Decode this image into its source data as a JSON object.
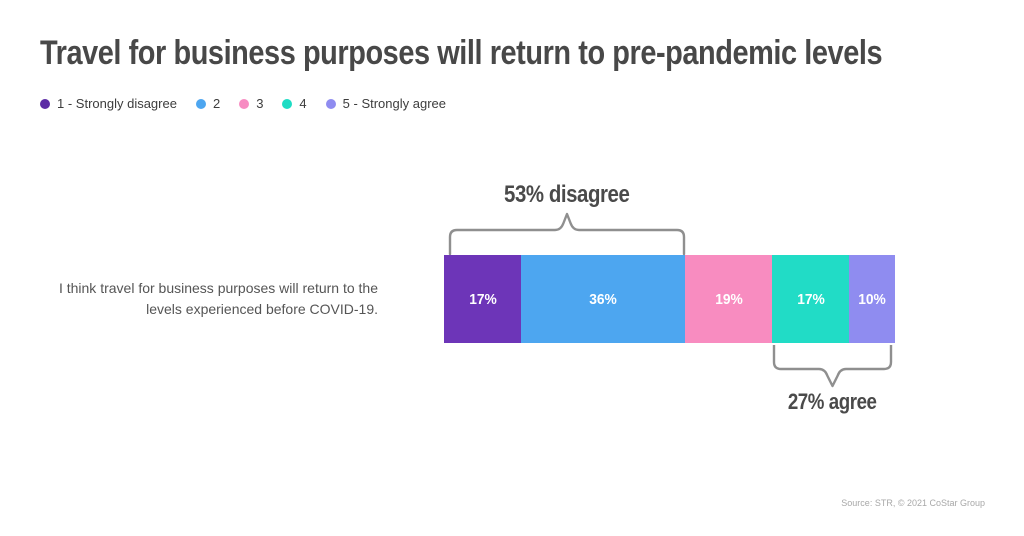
{
  "title": "Travel for business purposes will return to pre-pandemic levels",
  "legend": [
    {
      "label": "1 - Strongly disagree",
      "color": "#5c2ca5"
    },
    {
      "label": "2",
      "color": "#4da6f0"
    },
    {
      "label": "3",
      "color": "#f78cc2"
    },
    {
      "label": "4",
      "color": "#1edcc4"
    },
    {
      "label": "5 - Strongly agree",
      "color": "#8f8cf0"
    }
  ],
  "statement": {
    "lines": [
      "I think travel for business purposes will return to the",
      "levels experienced before COVID-19."
    ]
  },
  "chart_data": {
    "type": "bar",
    "orientation": "horizontal",
    "stacked": true,
    "title": "Travel for business purposes will return to pre-pandemic levels",
    "category": "I think travel for business purposes will return to the levels experienced before COVID-19.",
    "unit": "%",
    "xlim": [
      0,
      100
    ],
    "legend_position": "top-left",
    "series": [
      {
        "name": "1 - Strongly disagree",
        "value": 17,
        "label": "17%",
        "color": "#6d35b8"
      },
      {
        "name": "2",
        "value": 36,
        "label": "36%",
        "color": "#4da6f0"
      },
      {
        "name": "3",
        "value": 19,
        "label": "19%",
        "color": "#f88cc0"
      },
      {
        "name": "4",
        "value": 17,
        "label": "17%",
        "color": "#21dcc6"
      },
      {
        "name": "5 - Strongly agree",
        "value": 10,
        "label": "10%",
        "color": "#8f8cf0"
      }
    ],
    "annotations": [
      {
        "text": "53% disagree",
        "spans": [
          "1 - Strongly disagree",
          "2"
        ],
        "position": "above"
      },
      {
        "text": "27% agree",
        "spans": [
          "4",
          "5 - Strongly agree"
        ],
        "position": "below"
      }
    ]
  },
  "source": "Source: STR, © 2021 CoStar Group"
}
